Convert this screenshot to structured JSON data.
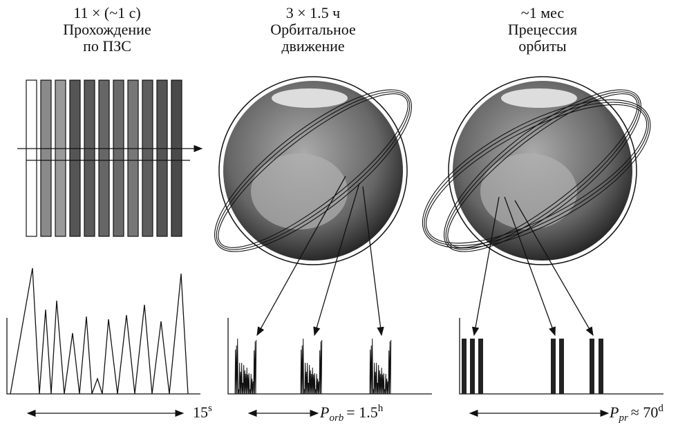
{
  "panels": [
    {
      "title": [
        "11 × (~1 с)",
        "Прохождение",
        "по ПЗС"
      ],
      "scale": {
        "text": "15",
        "superscript": "s"
      }
    },
    {
      "title": [
        "3 × 1.5 ч",
        "Орбитальное",
        "движение"
      ],
      "scale": {
        "symbol": "P",
        "subscript": "orb",
        "text": "= 1.5",
        "superscript": "h"
      }
    },
    {
      "title": [
        "~1 мес",
        "Прецессия",
        "орбиты"
      ],
      "scale": {
        "symbol": "P",
        "subscript": "pr",
        "text": "≈ 70",
        "superscript": "d"
      }
    }
  ]
}
